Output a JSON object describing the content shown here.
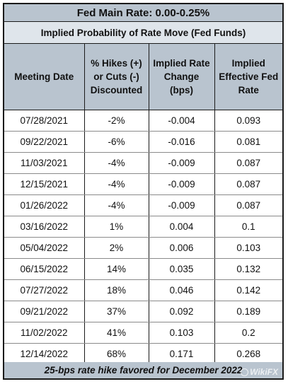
{
  "title": "Fed Main Rate: 0.00-0.25%",
  "subtitle": "Implied Probability of Rate Move (Fed Funds)",
  "columns": {
    "c1": "Meeting Date",
    "c2": "% Hikes (+) or Cuts (-) Discounted",
    "c3": "Implied Rate Change (bps)",
    "c4": "Implied Effective Fed Rate"
  },
  "rows": [
    {
      "date": "07/28/2021",
      "pct": "-2%",
      "change": "-0.004",
      "rate": "0.093"
    },
    {
      "date": "09/22/2021",
      "pct": "-6%",
      "change": "-0.016",
      "rate": "0.081"
    },
    {
      "date": "11/03/2021",
      "pct": "-4%",
      "change": "-0.009",
      "rate": "0.087"
    },
    {
      "date": "12/15/2021",
      "pct": "-4%",
      "change": "-0.009",
      "rate": "0.087"
    },
    {
      "date": "01/26/2022",
      "pct": "-4%",
      "change": "-0.009",
      "rate": "0.087"
    },
    {
      "date": "03/16/2022",
      "pct": "1%",
      "change": "0.004",
      "rate": "0.1"
    },
    {
      "date": "05/04/2022",
      "pct": "2%",
      "change": "0.006",
      "rate": "0.103"
    },
    {
      "date": "06/15/2022",
      "pct": "14%",
      "change": "0.035",
      "rate": "0.132"
    },
    {
      "date": "07/27/2022",
      "pct": "18%",
      "change": "0.046",
      "rate": "0.142"
    },
    {
      "date": "09/21/2022",
      "pct": "37%",
      "change": "0.092",
      "rate": "0.189"
    },
    {
      "date": "11/02/2022",
      "pct": "41%",
      "change": "0.103",
      "rate": "0.2"
    },
    {
      "date": "12/14/2022",
      "pct": "68%",
      "change": "0.171",
      "rate": "0.268"
    }
  ],
  "footer": "25-bps rate hike favored for December 2022",
  "watermark": "WikiFX"
}
